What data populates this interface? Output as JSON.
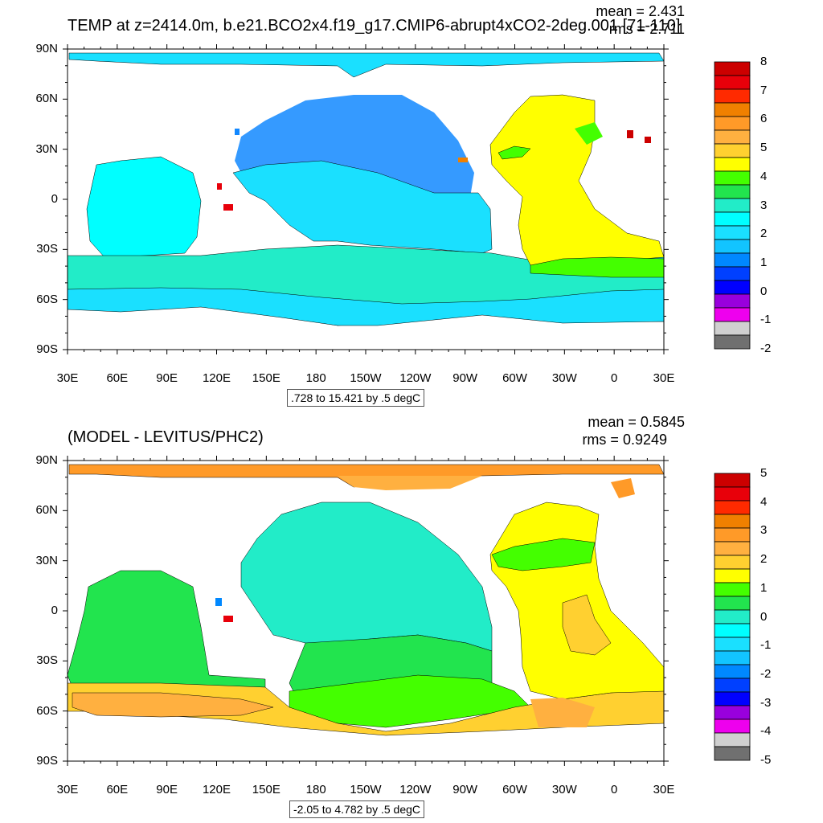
{
  "panels": [
    {
      "title": "TEMP at z=2414.0m, b.e21.BCO2x4.f19_g17.CMIP6-abrupt4xCO2-2deg.001 [71-110]",
      "mean_label": "mean = 2.431",
      "rms_label": "rms = 2.711",
      "range_text": ".728 to 15.421 by .5 degC",
      "colorbar_labels": [
        "8",
        "7",
        "6",
        "5",
        "4",
        "3",
        "2",
        "1",
        "0",
        "-1",
        "-2"
      ]
    },
    {
      "title": "(MODEL - LEVITUS/PHC2)",
      "mean_label": "mean = 0.5845",
      "rms_label": "rms = 0.9249",
      "range_text": "-2.05 to 4.782 by .5 degC",
      "colorbar_labels": [
        "5",
        "4",
        "3",
        "2",
        "1",
        "0",
        "-1",
        "-2",
        "-3",
        "-4",
        "-5"
      ]
    }
  ],
  "lat_labels": [
    "90N",
    "60N",
    "30N",
    "0",
    "30S",
    "60S",
    "90S"
  ],
  "lon_labels": [
    "30E",
    "60E",
    "90E",
    "120E",
    "150E",
    "180",
    "150W",
    "120W",
    "90W",
    "60W",
    "30W",
    "0",
    "30E"
  ],
  "colors": {
    "palette": [
      "#cc0000",
      "#e8000a",
      "#ff2a00",
      "#f08000",
      "#ff9a28",
      "#ffb040",
      "#ffd030",
      "#ffff00",
      "#44ff00",
      "#22e44e",
      "#22ecc8",
      "#00ffff",
      "#1ae0ff",
      "#12c4ff",
      "#0088ff",
      "#0040ff",
      "#0000ff",
      "#9900dd",
      "#ee00ee",
      "#d0d0d0",
      "#707070"
    ],
    "land": "#ffffff"
  }
}
